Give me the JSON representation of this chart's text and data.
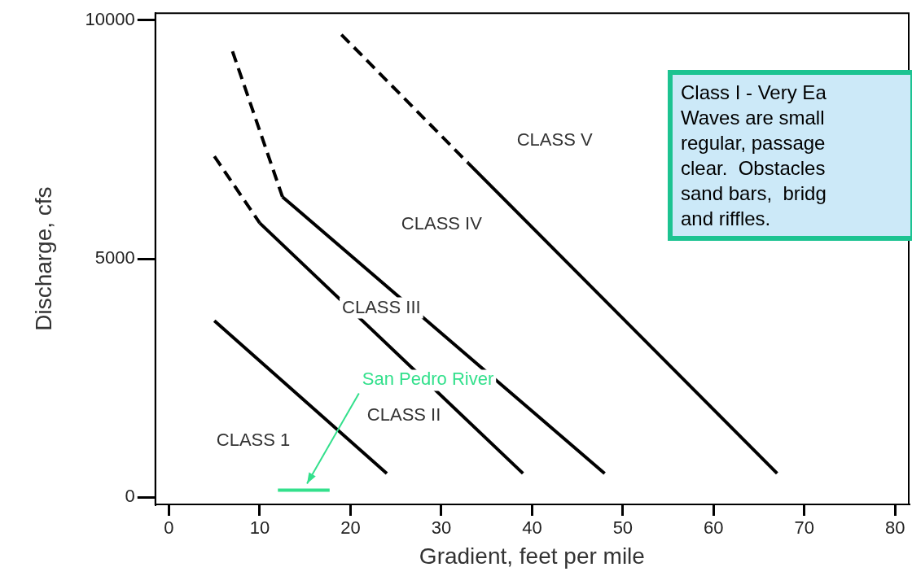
{
  "chart_data": {
    "type": "line",
    "xlabel": "Gradient, feet per mile",
    "ylabel": "Discharge, cfs",
    "xlim": [
      -1.5,
      81.5
    ],
    "ylim": [
      -150,
      10150
    ],
    "xticks": [
      0,
      10,
      20,
      30,
      40,
      50,
      60,
      70,
      80
    ],
    "yticks": [
      0,
      5000,
      10000
    ],
    "marker": "none",
    "series": [
      {
        "color": "#000000",
        "line_style": "solid",
        "x": [
          5,
          24
        ],
        "values": [
          3700,
          500
        ]
      },
      {
        "color": "#000000",
        "line_style": "dashed",
        "x": [
          5,
          10
        ],
        "values": [
          7150,
          5750
        ]
      },
      {
        "color": "#000000",
        "line_style": "solid",
        "x": [
          10,
          39
        ],
        "values": [
          5750,
          500
        ]
      },
      {
        "color": "#000000",
        "line_style": "dashed",
        "x": [
          7,
          12.5
        ],
        "values": [
          9350,
          6300
        ]
      },
      {
        "color": "#000000",
        "line_style": "solid",
        "x": [
          12.5,
          48
        ],
        "values": [
          6300,
          500
        ]
      },
      {
        "color": "#000000",
        "line_style": "dashed",
        "x": [
          19,
          33
        ],
        "values": [
          9700,
          7000
        ]
      },
      {
        "color": "#000000",
        "line_style": "solid",
        "x": [
          33,
          67
        ],
        "values": [
          7000,
          500
        ]
      },
      {
        "name": "San Pedro River",
        "color": "#33e08c",
        "line_style": "solid",
        "x": [
          12,
          17.7
        ],
        "values": [
          150,
          150
        ]
      }
    ],
    "annotations": [
      "CLASS 1",
      "CLASS II",
      "CLASS III",
      "CLASS IV",
      "CLASS V",
      "Class I - Very Ea\nWaves are small\nregular, passage\nclear.  Obstacles\nsand bars,  bridg\nand riffles."
    ]
  }
}
